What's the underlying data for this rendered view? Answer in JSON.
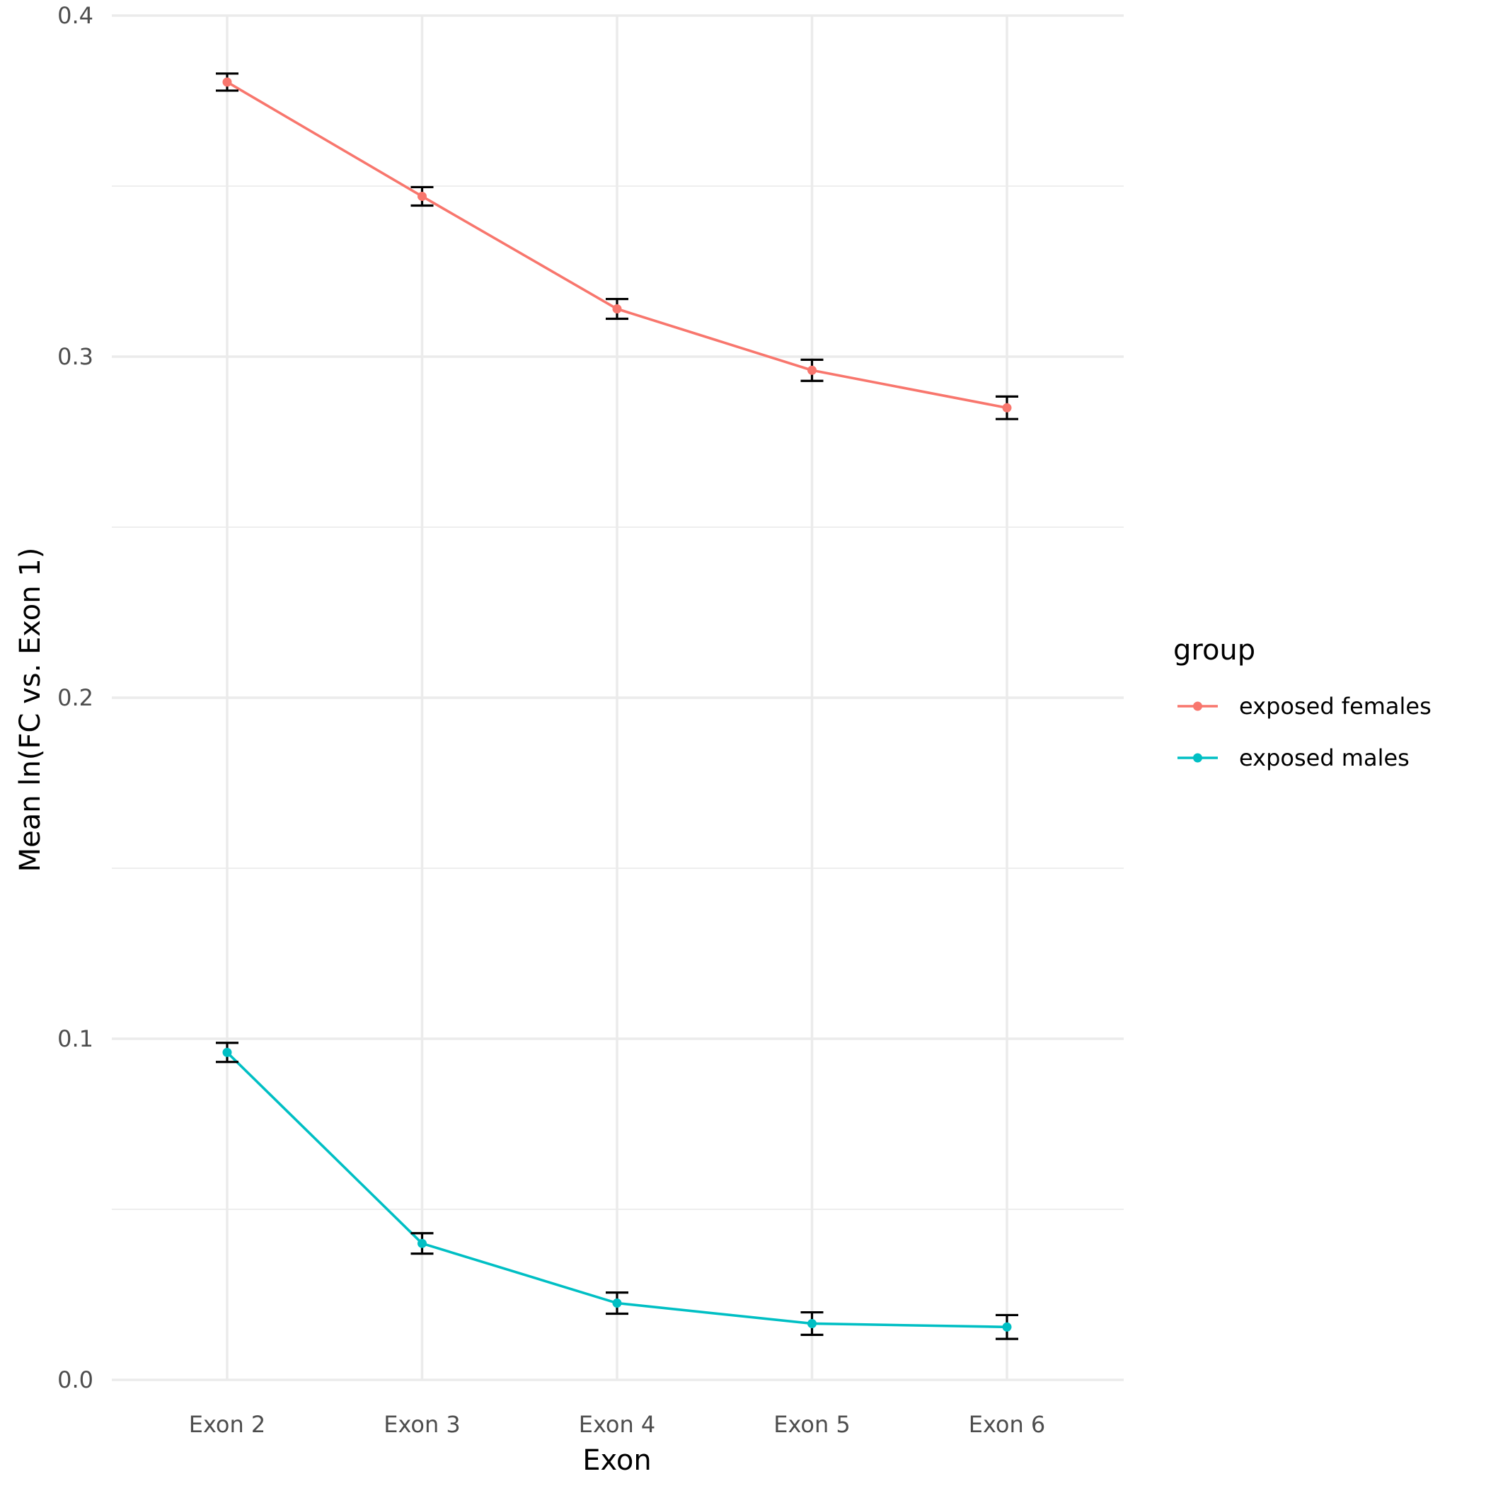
{
  "chart_data": {
    "type": "line",
    "xlabel": "Exon",
    "ylabel": "Mean ln(FC vs. Exon 1)",
    "categories": [
      "Exon 2",
      "Exon 3",
      "Exon 4",
      "Exon 5",
      "Exon 6"
    ],
    "ylim": [
      0,
      0.4
    ],
    "yticks": [
      "0.0",
      "0.1",
      "0.2",
      "0.3",
      "0.4"
    ],
    "grid": true,
    "legend": {
      "title": "group",
      "position": "right"
    },
    "series": [
      {
        "name": "exposed females",
        "color": "#F8766D",
        "values": [
          0.3805,
          0.347,
          0.314,
          0.296,
          0.285
        ],
        "error": [
          0.0025,
          0.0027,
          0.0029,
          0.0031,
          0.0033
        ]
      },
      {
        "name": "exposed males",
        "color": "#00BFC4",
        "values": [
          0.096,
          0.04,
          0.0225,
          0.0165,
          0.0155
        ],
        "error": [
          0.0028,
          0.003,
          0.0031,
          0.0033,
          0.0035
        ]
      }
    ],
    "errorbar_color": "#000000"
  }
}
